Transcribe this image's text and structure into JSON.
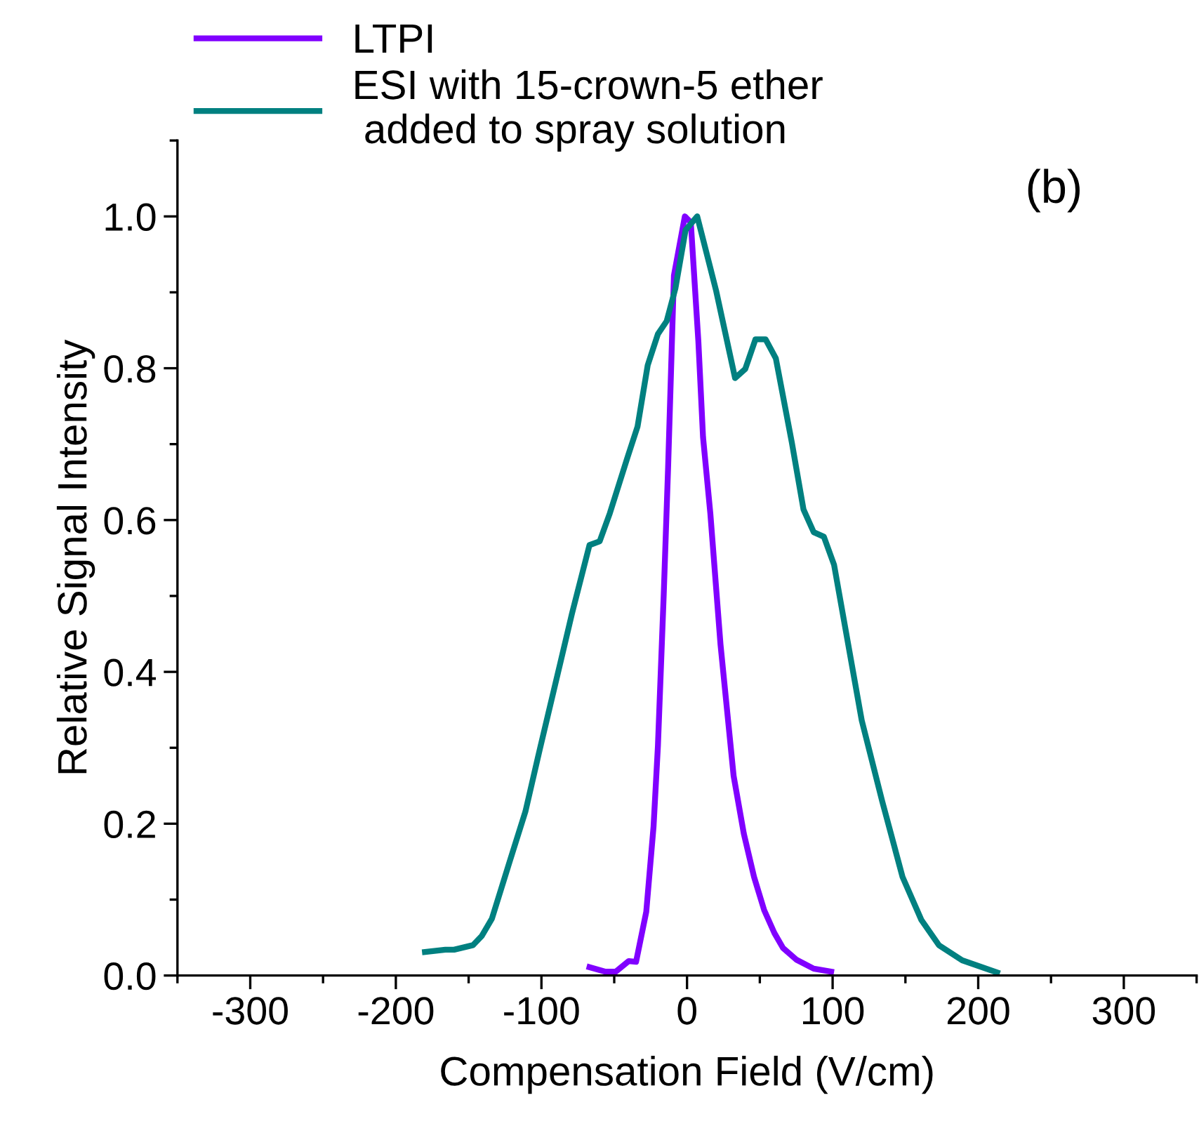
{
  "chart_data": {
    "type": "line",
    "xlabel": "Compensation Field (V/cm)",
    "ylabel": "Relative Signal Intensity",
    "annotations": [
      "(b)"
    ],
    "legend": "top left",
    "grid": false,
    "xlim": [
      -350,
      350
    ],
    "xticks": [
      -300,
      -200,
      -100,
      0,
      100,
      200,
      300
    ],
    "ylim": [
      0,
      1.1
    ],
    "yticks": [
      {
        "value": 0,
        "label": "0.0"
      },
      0.2,
      0.4,
      0.6,
      0.8,
      {
        "value": 1,
        "label": "1.0"
      }
    ],
    "series": [
      {
        "name": "LTPI",
        "color": "#8000ff",
        "x": [
          -67,
          -56,
          -49,
          -40,
          -35,
          -28,
          -23,
          -20,
          -16,
          -13,
          -9,
          -1.5,
          2.6,
          7.8,
          11,
          16,
          23,
          32,
          39,
          46,
          53,
          60,
          66,
          75,
          87,
          99
        ],
        "values": [
          0.011,
          0.005,
          0.005,
          0.019,
          0.018,
          0.084,
          0.196,
          0.302,
          0.502,
          0.669,
          0.922,
          1.0,
          0.992,
          0.835,
          0.709,
          0.609,
          0.436,
          0.263,
          0.187,
          0.13,
          0.086,
          0.056,
          0.036,
          0.021,
          0.009,
          0.005
        ]
      },
      {
        "name": "ESI with 15-crown-5 ether\n added to spray solution",
        "color": "#008080",
        "x": [
          -180,
          -166,
          -160,
          -147,
          -141,
          -134,
          -122,
          -111,
          -101,
          -87,
          -79,
          -67,
          -60,
          -53,
          -41,
          -34,
          -27,
          -20,
          -14,
          -8,
          -1,
          7,
          20,
          33,
          40,
          47,
          54,
          61,
          72,
          80,
          87,
          94,
          101,
          120,
          134,
          148,
          161,
          173,
          189,
          213
        ],
        "values": [
          0.031,
          0.034,
          0.034,
          0.04,
          0.052,
          0.075,
          0.149,
          0.216,
          0.299,
          0.412,
          0.477,
          0.567,
          0.572,
          0.609,
          0.682,
          0.723,
          0.804,
          0.845,
          0.862,
          0.905,
          0.982,
          1.0,
          0.902,
          0.787,
          0.799,
          0.838,
          0.838,
          0.813,
          0.702,
          0.614,
          0.584,
          0.578,
          0.541,
          0.336,
          0.23,
          0.13,
          0.073,
          0.04,
          0.02,
          0.004
        ]
      }
    ]
  }
}
